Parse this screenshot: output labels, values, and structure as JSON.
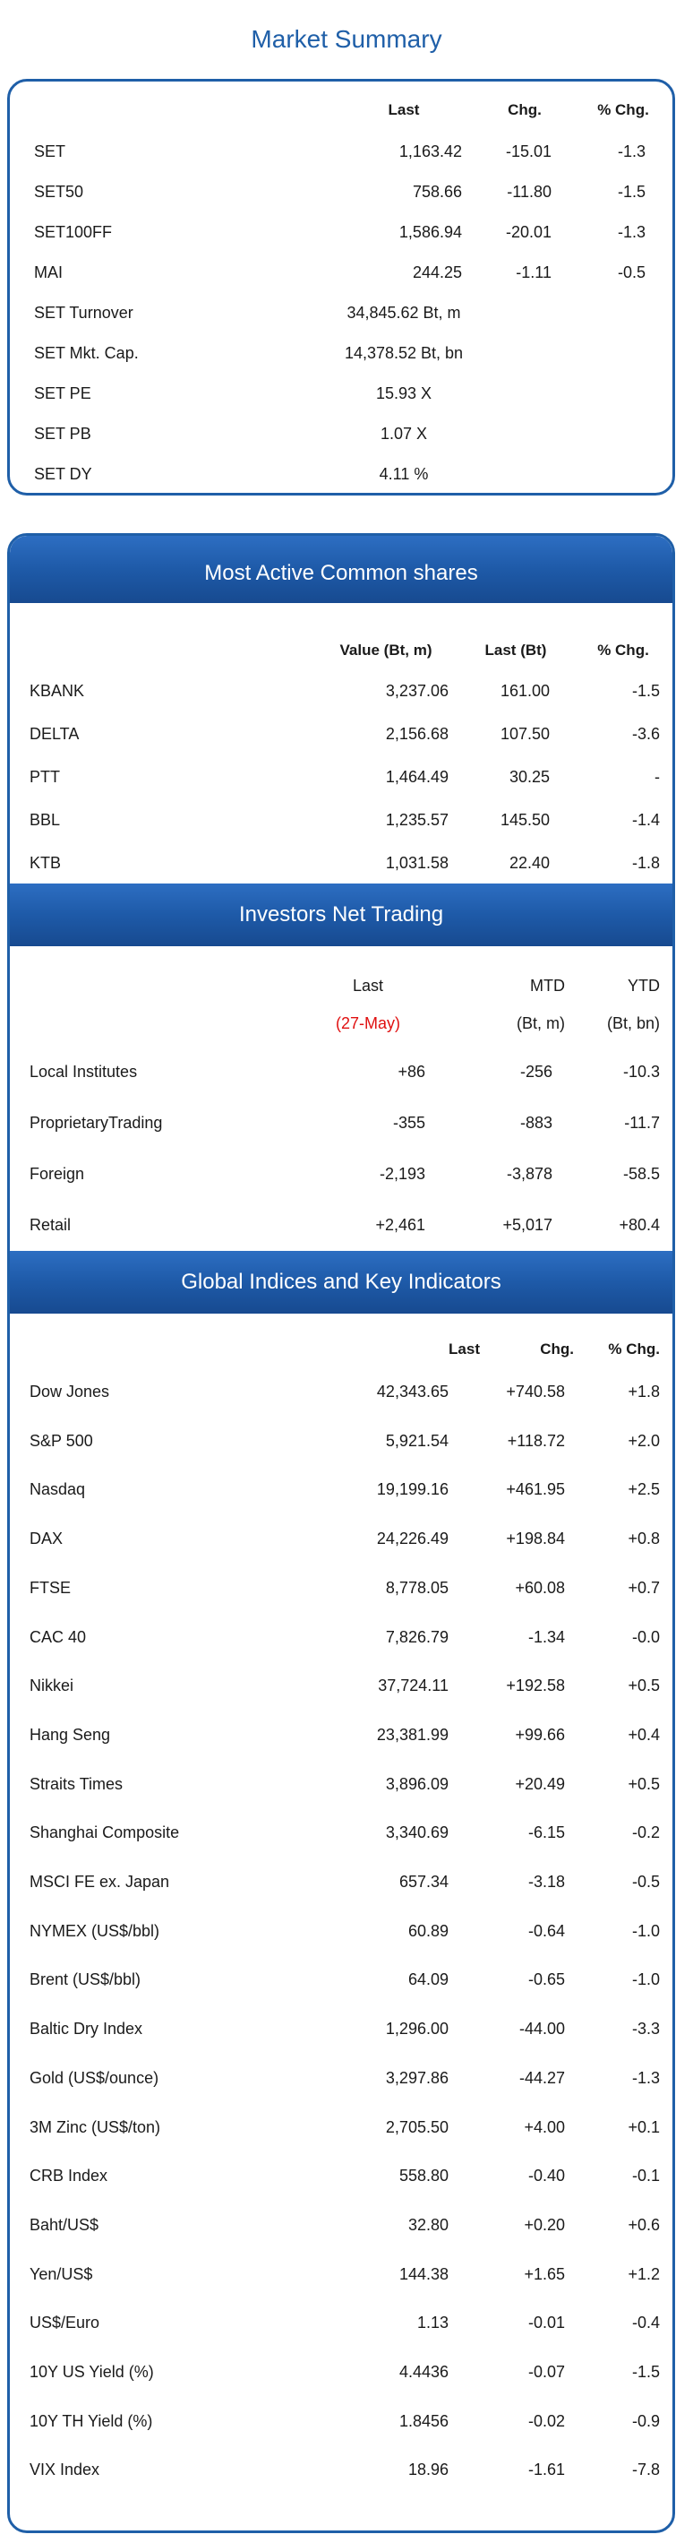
{
  "page_title": "Market Summary",
  "summary": {
    "headers": {
      "last": "Last",
      "chg": "Chg.",
      "pct": "% Chg."
    },
    "rows": [
      {
        "name": "SET",
        "last": "1,163.42",
        "chg": "-15.01",
        "pct": "-1.3"
      },
      {
        "name": "SET50",
        "last": "758.66",
        "chg": "-11.80",
        "pct": "-1.5"
      },
      {
        "name": "SET100FF",
        "last": "1,586.94",
        "chg": "-20.01",
        "pct": "-1.3"
      },
      {
        "name": "MAI",
        "last": "244.25",
        "chg": "-1.11",
        "pct": "-0.5"
      },
      {
        "name": "SET  Turnover",
        "last": "34,845.62 Bt, m"
      },
      {
        "name": "SET  Mkt. Cap.",
        "last": "14,378.52 Bt, bn"
      },
      {
        "name": "SET  PE",
        "last": "15.93 X"
      },
      {
        "name": "SET  PB",
        "last": "1.07 X"
      },
      {
        "name": "SET  DY",
        "last": "4.11 %"
      }
    ]
  },
  "most_active": {
    "title": "Most Active Common shares",
    "headers": {
      "value": "Value (Bt, m)",
      "last": "Last (Bt)",
      "pct": "% Chg."
    },
    "rows": [
      {
        "name": "KBANK",
        "value": "3,237.06",
        "last": "161.00",
        "pct": "-1.5"
      },
      {
        "name": "DELTA",
        "value": "2,156.68",
        "last": "107.50",
        "pct": "-3.6"
      },
      {
        "name": "PTT",
        "value": "1,464.49",
        "last": "30.25",
        "pct": "-"
      },
      {
        "name": "BBL",
        "value": "1,235.57",
        "last": "145.50",
        "pct": "-1.4"
      },
      {
        "name": "KTB",
        "value": "1,031.58",
        "last": "22.40",
        "pct": "-1.8"
      }
    ]
  },
  "investors": {
    "title": "Investors Net Trading",
    "headers": {
      "last": "Last",
      "mtd": "MTD",
      "ytd": "YTD"
    },
    "subheaders": {
      "last": "(27-May)",
      "mtd": "(Bt, m)",
      "ytd": "(Bt, bn)"
    },
    "rows": [
      {
        "name": "Local Institutes",
        "last": "+86",
        "mtd": "-256",
        "ytd": "-10.3"
      },
      {
        "name": "ProprietaryTrading",
        "last": "-355",
        "mtd": "-883",
        "ytd": "-11.7"
      },
      {
        "name": "Foreign",
        "last": "-2,193",
        "mtd": "-3,878",
        "ytd": "-58.5"
      },
      {
        "name": "Retail",
        "last": "+2,461",
        "mtd": "+5,017",
        "ytd": "+80.4"
      }
    ]
  },
  "global": {
    "title": "Global Indices and Key Indicators",
    "headers": {
      "last": "Last",
      "chg": "Chg.",
      "pct": "% Chg."
    },
    "rows": [
      {
        "name": "Dow Jones",
        "last": "42,343.65",
        "chg": "+740.58",
        "pct": "+1.8"
      },
      {
        "name": "S&P 500",
        "last": "5,921.54",
        "chg": "+118.72",
        "pct": "+2.0"
      },
      {
        "name": "Nasdaq",
        "last": "19,199.16",
        "chg": "+461.95",
        "pct": "+2.5"
      },
      {
        "name": "DAX",
        "last": "24,226.49",
        "chg": "+198.84",
        "pct": "+0.8"
      },
      {
        "name": "FTSE",
        "last": "8,778.05",
        "chg": "+60.08",
        "pct": "+0.7"
      },
      {
        "name": "CAC 40",
        "last": "7,826.79",
        "chg": "-1.34",
        "pct": "-0.0"
      },
      {
        "name": "Nikkei",
        "last": "37,724.11",
        "chg": "+192.58",
        "pct": "+0.5"
      },
      {
        "name": "Hang Seng",
        "last": "23,381.99",
        "chg": "+99.66",
        "pct": "+0.4"
      },
      {
        "name": "Straits Times",
        "last": "3,896.09",
        "chg": "+20.49",
        "pct": "+0.5"
      },
      {
        "name": "Shanghai Composite",
        "last": "3,340.69",
        "chg": "-6.15",
        "pct": "-0.2"
      },
      {
        "name": "MSCI FE ex. Japan",
        "last": "657.34",
        "chg": "-3.18",
        "pct": "-0.5"
      },
      {
        "name": "NYMEX (US$/bbl)",
        "last": "60.89",
        "chg": "-0.64",
        "pct": "-1.0"
      },
      {
        "name": "Brent (US$/bbl)",
        "last": "64.09",
        "chg": "-0.65",
        "pct": "-1.0"
      },
      {
        "name": "Baltic Dry Index",
        "last": "1,296.00",
        "chg": "-44.00",
        "pct": "-3.3"
      },
      {
        "name": "Gold (US$/ounce)",
        "last": "3,297.86",
        "chg": "-44.27",
        "pct": "-1.3"
      },
      {
        "name": "3M Zinc (US$/ton)",
        "last": "2,705.50",
        "chg": "+4.00",
        "pct": "+0.1"
      },
      {
        "name": "CRB Index",
        "last": "558.80",
        "chg": "-0.40",
        "pct": "-0.1"
      },
      {
        "name": "Baht/US$",
        "last": "32.80",
        "chg": "+0.20",
        "pct": "+0.6"
      },
      {
        "name": "Yen/US$",
        "last": "144.38",
        "chg": "+1.65",
        "pct": "+1.2"
      },
      {
        "name": "US$/Euro",
        "last": "1.13",
        "chg": "-0.01",
        "pct": "-0.4"
      },
      {
        "name": "10Y US Yield (%)",
        "last": "4.4436",
        "chg": "-0.07",
        "pct": "-1.5"
      },
      {
        "name": "10Y TH Yield (%)",
        "last": "1.8456",
        "chg": "-0.02",
        "pct": "-0.9"
      },
      {
        "name": "VIX Index",
        "last": "18.96",
        "chg": "-1.61",
        "pct": "-7.8"
      }
    ]
  }
}
